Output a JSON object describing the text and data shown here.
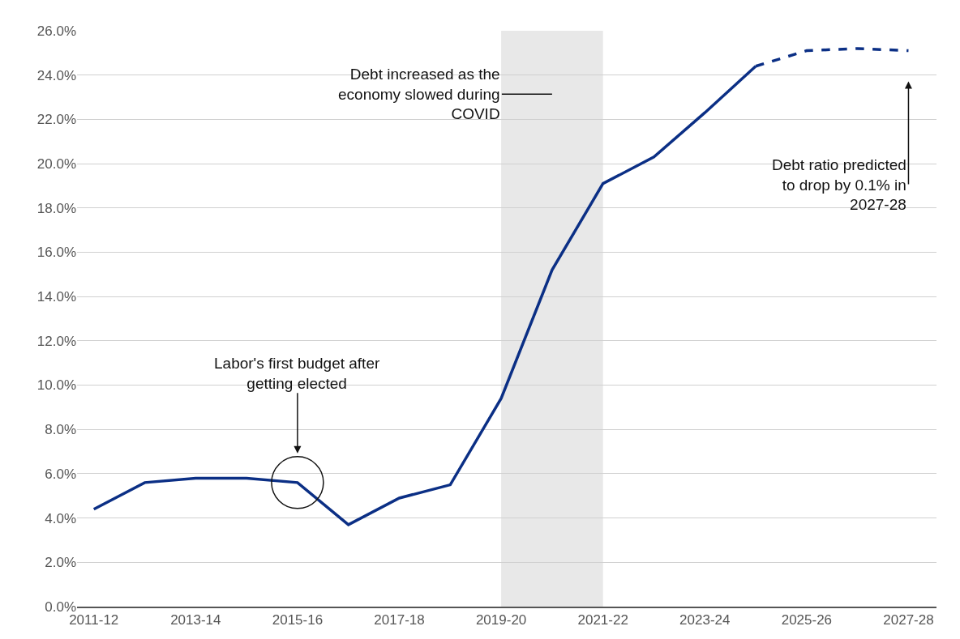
{
  "chart_data": {
    "type": "line",
    "categories": [
      "2011-12",
      null,
      "2013-14",
      null,
      "2015-16",
      null,
      "2017-18",
      null,
      "2019-20",
      null,
      "2021-22",
      null,
      "2023-24",
      null,
      "2025-26",
      null,
      "2027-28"
    ],
    "series": [
      {
        "color": "#0b2f85",
        "line_style": "solid",
        "values": [
          4.4,
          5.6,
          5.8,
          5.8,
          5.6,
          3.7,
          4.9,
          5.5,
          9.4,
          15.2,
          19.1,
          20.3,
          22.3,
          24.4,
          null,
          null,
          null
        ]
      },
      {
        "color": "#0b2f85",
        "line_style": "dashed",
        "values": [
          null,
          null,
          null,
          null,
          null,
          null,
          null,
          null,
          null,
          null,
          null,
          null,
          null,
          24.4,
          25.1,
          25.2,
          25.1
        ]
      }
    ],
    "ylim": [
      0,
      26
    ],
    "yticks": [
      {
        "value": 0,
        "label": "0.0%"
      },
      {
        "value": 2,
        "label": "2.0%"
      },
      {
        "value": 4,
        "label": "4.0%"
      },
      {
        "value": 6,
        "label": "6.0%"
      },
      {
        "value": 8,
        "label": "8.0%"
      },
      {
        "value": 10,
        "label": "10.0%"
      },
      {
        "value": 12,
        "label": "12.0%"
      },
      {
        "value": 14,
        "label": "14.0%"
      },
      {
        "value": 16,
        "label": "16.0%"
      },
      {
        "value": 18,
        "label": "18.0%"
      },
      {
        "value": 20,
        "label": "20.0%"
      },
      {
        "value": 22,
        "label": "22.0%"
      },
      {
        "value": 24,
        "label": "24.0%"
      },
      {
        "value": 26,
        "label": "26.0%"
      }
    ],
    "grid": "y",
    "marker": "none",
    "bands": [
      {
        "axis": "x",
        "from": "2019-20",
        "to": "2021-22",
        "color": "#e8e8e8"
      }
    ],
    "annotations": [
      "Debt increased as the economy slowed during COVID",
      {
        "text": "Labor's first budget after getting elected",
        "x": "2015-16",
        "y": 5.6
      },
      {
        "text": "Debt ratio predicted to drop by 0.1% in 2027-28",
        "x": "2027-28",
        "y": 25.1
      }
    ]
  }
}
